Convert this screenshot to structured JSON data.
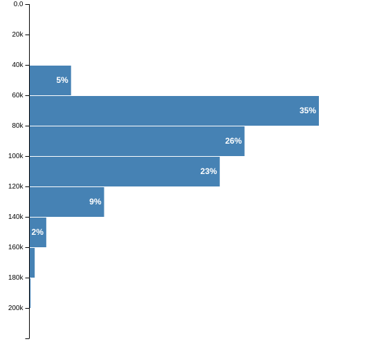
{
  "chart_data": {
    "type": "bar",
    "orientation": "horizontal",
    "title": "",
    "xlabel": "",
    "ylabel": "",
    "grid": false,
    "bar_color": "#4682b4",
    "label_color": "#ffffff",
    "y_axis": {
      "domain": [
        0,
        220000
      ],
      "tick_values": [
        0,
        20000,
        40000,
        60000,
        80000,
        100000,
        120000,
        140000,
        160000,
        180000,
        200000
      ],
      "tick_labels": [
        "0.0",
        "20k",
        "40k",
        "60k",
        "80k",
        "100k",
        "120k",
        "140k",
        "160k",
        "180k",
        "200k"
      ]
    },
    "bins": [
      {
        "start": 40000,
        "end": 60000,
        "percent": 5,
        "label": "5%"
      },
      {
        "start": 60000,
        "end": 80000,
        "percent": 35,
        "label": "35%"
      },
      {
        "start": 80000,
        "end": 100000,
        "percent": 26,
        "label": "26%"
      },
      {
        "start": 100000,
        "end": 120000,
        "percent": 23,
        "label": "23%"
      },
      {
        "start": 120000,
        "end": 140000,
        "percent": 9,
        "label": "9%"
      },
      {
        "start": 140000,
        "end": 160000,
        "percent": 2,
        "label": "2%"
      },
      {
        "start": 160000,
        "end": 180000,
        "percent": 0.6,
        "label": ""
      },
      {
        "start": 180000,
        "end": 200000,
        "percent": 0.1,
        "label": ""
      }
    ]
  }
}
